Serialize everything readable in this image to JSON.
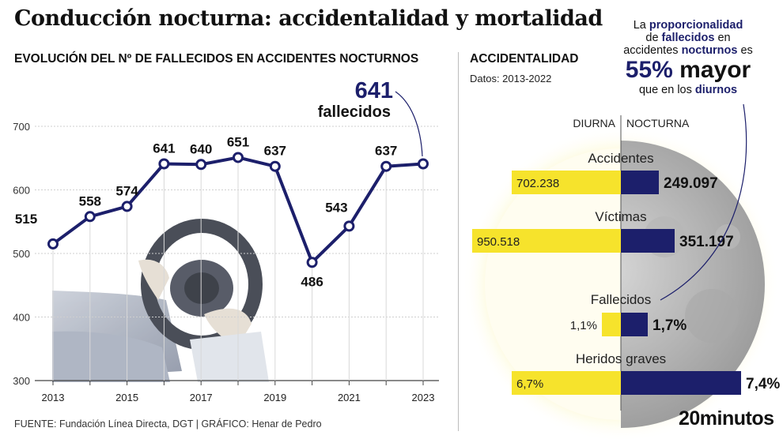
{
  "title": "Conducción nocturna: accidentalidad y mortalidad",
  "left_subtitle": "EVOLUCIÓN DEL Nº DE FALLECIDOS EN ACCIDENTES NOCTURNOS",
  "right_subtitle": "ACCIDENTALIDAD",
  "right_dates": "Datos: 2013-2022",
  "callout": {
    "number": "641",
    "unit": "fallecidos"
  },
  "note": {
    "l1a": "La ",
    "l1b": "proporcionalidad",
    "l2a": "de ",
    "l2b": "fallecidos",
    "l2c": " en",
    "l3a": "accidentes ",
    "l3b": "nocturnos",
    "l3c": " es",
    "big_a": "55%",
    "big_b": " mayor",
    "l5a": "que en los ",
    "l5b": "diurnos"
  },
  "source": "FUENTE: Fundación Línea Directa, DGT  |  GRÁFICO: Henar de Pedro",
  "brand": "20minutos",
  "colors": {
    "navy": "#1c1f6b",
    "yellow": "#f6e32c",
    "grid": "#cfcfcf"
  },
  "chart_data": [
    {
      "type": "line",
      "x": [
        2013,
        2014,
        2015,
        2016,
        2017,
        2018,
        2019,
        2020,
        2021,
        2022,
        2023
      ],
      "values": [
        515,
        558,
        574,
        641,
        640,
        651,
        637,
        486,
        543,
        637,
        641
      ],
      "x_tick_labels": [
        "2013",
        "2015",
        "2017",
        "2019",
        "2021",
        "2023"
      ],
      "y_ticks": [
        300,
        400,
        500,
        600,
        700
      ],
      "ylim": [
        300,
        700
      ],
      "grid": true
    },
    {
      "type": "bar",
      "orientation": "horizontal-diverging",
      "left_label": "DIURNA",
      "right_label": "NOCTURNA",
      "categories": [
        "Accidentes",
        "Víctimas",
        "Fallecidos",
        "Heridos graves"
      ],
      "diurna_values": [
        "702.238",
        "950.518",
        "1,1%",
        "6,7%"
      ],
      "nocturna_values": [
        "249.097",
        "351.197",
        "1,7%",
        "7,4%"
      ]
    }
  ]
}
